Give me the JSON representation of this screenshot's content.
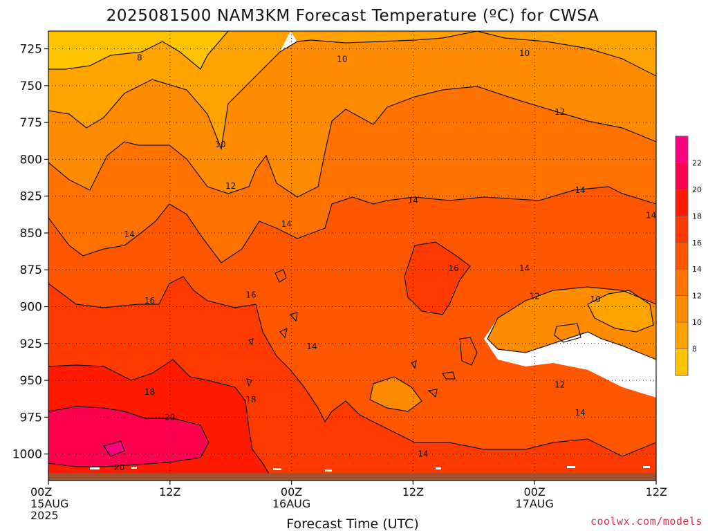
{
  "chart_data": {
    "type": "heatmap",
    "title": "2025081500 NAM3KM Forecast Temperature (ºC) for CWSA",
    "xlabel": "Forecast Time (UTC)",
    "ylabel": "",
    "x_range_hours": [
      0,
      60
    ],
    "ylim": [
      713,
      1018
    ],
    "y_ticks": [
      725,
      750,
      775,
      800,
      825,
      850,
      875,
      900,
      925,
      950,
      975,
      1000
    ],
    "x_ticks": [
      {
        "hour": 0,
        "lines": [
          "00Z",
          "15AUG",
          "2025"
        ]
      },
      {
        "hour": 12,
        "lines": [
          "12Z"
        ]
      },
      {
        "hour": 24,
        "lines": [
          "00Z",
          "16AUG"
        ]
      },
      {
        "hour": 36,
        "lines": [
          "12Z"
        ]
      },
      {
        "hour": 48,
        "lines": [
          "00Z",
          "17AUG"
        ]
      },
      {
        "hour": 60,
        "lines": [
          "12Z"
        ]
      }
    ],
    "grid": true,
    "surface_pressure_hpa": 1013,
    "surface_color": "#a0522d",
    "colorbar": {
      "placement": "right",
      "levels": [
        6,
        8,
        10,
        12,
        14,
        16,
        18,
        20,
        22,
        24
      ],
      "labels": [
        "8",
        "10",
        "12",
        "14",
        "16",
        "18",
        "20",
        "22"
      ],
      "colors": [
        "#ffc400",
        "#ffa300",
        "#ff8b00",
        "#ff7200",
        "#ff5700",
        "#ff3a00",
        "#ff1a00",
        "#ff0050",
        "#ff0080"
      ]
    },
    "contour_labels": [
      {
        "text": "8",
        "hour": 9.0,
        "p": 731
      },
      {
        "text": "10",
        "hour": 29.0,
        "p": 732
      },
      {
        "text": "10",
        "hour": 47.0,
        "p": 728
      },
      {
        "text": "10",
        "hour": 17.0,
        "p": 790
      },
      {
        "text": "12",
        "hour": 50.5,
        "p": 768
      },
      {
        "text": "12",
        "hour": 18.0,
        "p": 818
      },
      {
        "text": "12",
        "hour": 48.0,
        "p": 893
      },
      {
        "text": "12",
        "hour": 50.5,
        "p": 953
      },
      {
        "text": "14",
        "hour": 52.5,
        "p": 821
      },
      {
        "text": "14",
        "hour": 36.0,
        "p": 828
      },
      {
        "text": "14",
        "hour": 59.5,
        "p": 838
      },
      {
        "text": "14",
        "hour": 23.5,
        "p": 844
      },
      {
        "text": "14",
        "hour": 8.0,
        "p": 851
      },
      {
        "text": "14",
        "hour": 47.0,
        "p": 874
      },
      {
        "text": "14",
        "hour": 26.0,
        "p": 927
      },
      {
        "text": "14",
        "hour": 52.5,
        "p": 972
      },
      {
        "text": "14",
        "hour": 37.0,
        "p": 1000
      },
      {
        "text": "16",
        "hour": 40.0,
        "p": 874
      },
      {
        "text": "16",
        "hour": 10.0,
        "p": 896
      },
      {
        "text": "16",
        "hour": 20.0,
        "p": 892
      },
      {
        "text": "18",
        "hour": 10.0,
        "p": 958
      },
      {
        "text": "18",
        "hour": 20.0,
        "p": 963
      },
      {
        "text": "20",
        "hour": 12.0,
        "p": 975
      },
      {
        "text": "20",
        "hour": 7.0,
        "p": 1009
      },
      {
        "text": "10",
        "hour": 54.0,
        "p": 895
      }
    ]
  },
  "credit": "coolwx.com/models"
}
